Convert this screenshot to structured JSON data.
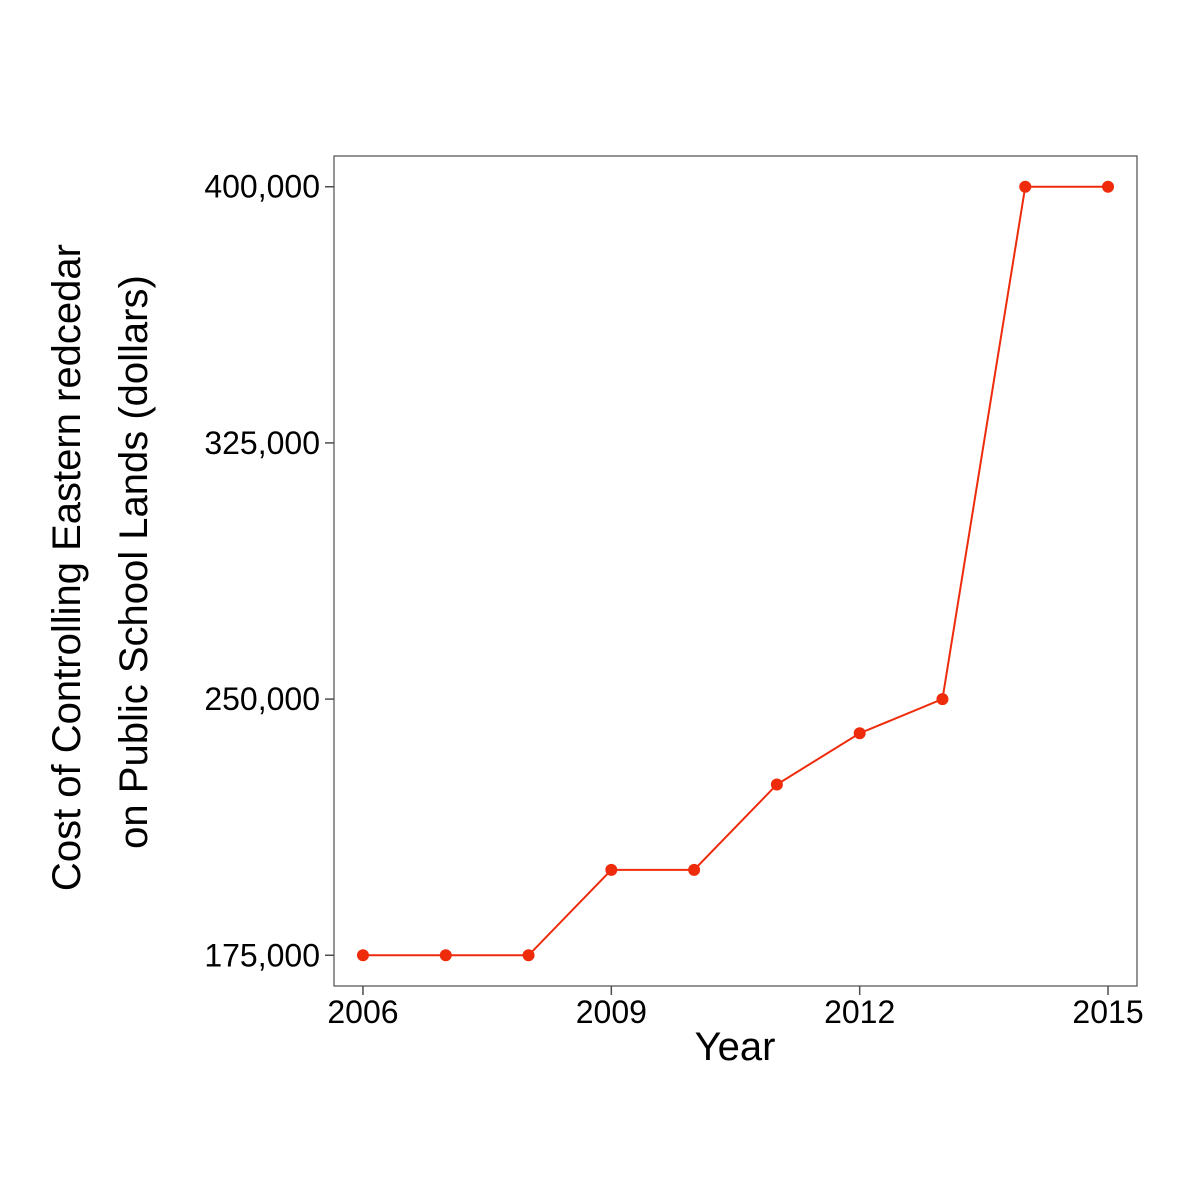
{
  "chart_data": {
    "type": "line",
    "title": "",
    "xlabel": "Year",
    "ylabel_lines": [
      "Cost of Controlling Eastern redcedar",
      "on Public School Lands (dollars)"
    ],
    "x": [
      2006,
      2007,
      2008,
      2009,
      2010,
      2011,
      2012,
      2013,
      2014,
      2015
    ],
    "series": [
      {
        "values": [
          175000,
          175000,
          175000,
          200000,
          200000,
          225000,
          240000,
          250000,
          400000,
          400000
        ],
        "color": "#EE2C0C"
      }
    ],
    "xlim": [
      2005.65,
      2015.35
    ],
    "ylim": [
      166000,
      409000
    ],
    "x_ticks": [
      2006,
      2009,
      2012,
      2015
    ],
    "x_tick_labels": [
      "2006",
      "2009",
      "2012",
      "2015"
    ],
    "y_ticks": [
      175000,
      250000,
      325000,
      400000
    ],
    "y_tick_labels": [
      "175,000",
      "250,000",
      "325,000",
      "400,000"
    ],
    "grid": false,
    "legend": "none",
    "frame_color": "#4d4d4d"
  }
}
